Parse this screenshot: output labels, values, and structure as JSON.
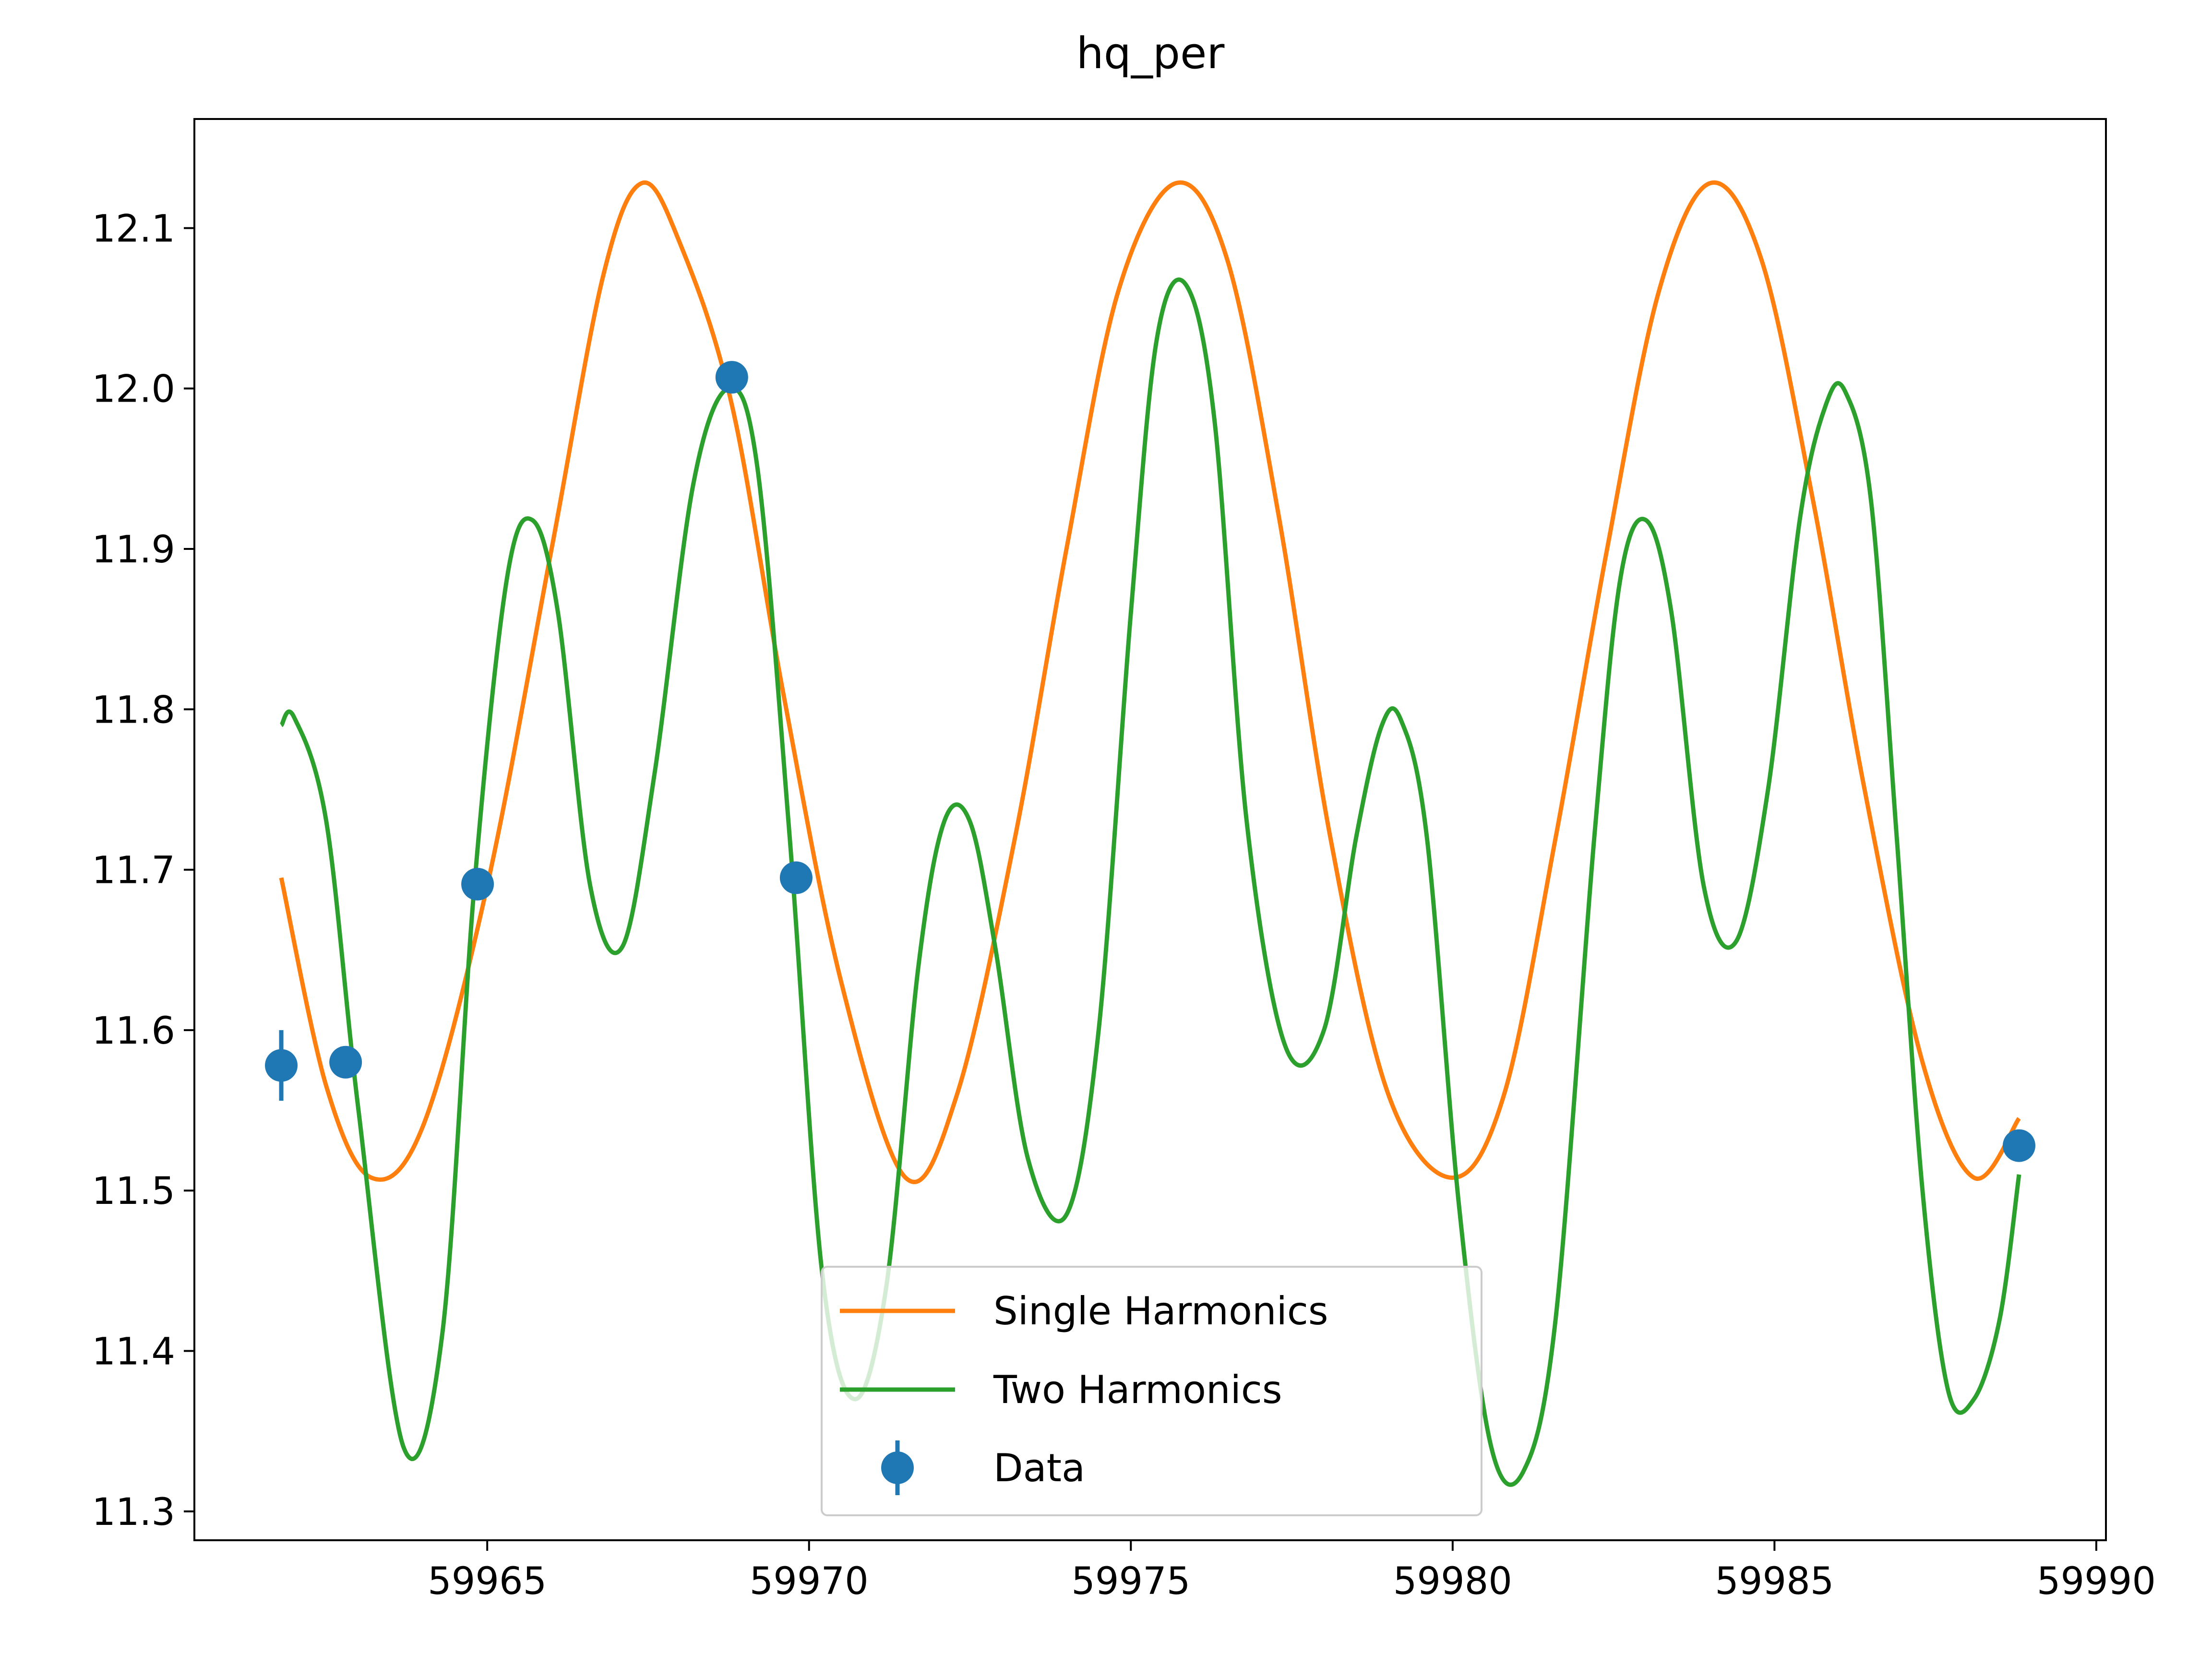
{
  "chart_data": {
    "type": "line",
    "title": "hq_per",
    "xlabel": "",
    "ylabel": "",
    "xlim": [
      59960.45,
      59990.15
    ],
    "ylim": [
      11.282,
      12.168
    ],
    "x_ticks": [
      59965,
      59970,
      59975,
      59980,
      59985,
      59990
    ],
    "y_ticks": [
      11.3,
      11.4,
      11.5,
      11.6,
      11.7,
      11.8,
      11.9,
      12.0,
      12.1
    ],
    "x_tick_labels": [
      "59965",
      "59970",
      "59975",
      "59980",
      "59985",
      "59990"
    ],
    "y_tick_labels": [
      "11.3",
      "11.4",
      "11.5",
      "11.6",
      "11.7",
      "11.8",
      "11.9",
      "12.0",
      "12.1"
    ],
    "grid": false,
    "legend_position": "lower center",
    "series": [
      {
        "name": "Single Harmonics",
        "kind": "line",
        "color": "#ff7f0e",
        "x": [
          59961.8,
          59962.5,
          59963.2,
          59964.0,
          59965.0,
          59966.0,
          59966.8,
          59967.4,
          59968.0,
          59968.8,
          59969.6,
          59970.5,
          59971.5,
          59972.3,
          59973.2,
          59974.0,
          59974.8,
          59975.7,
          59976.5,
          59977.3,
          59978.1,
          59979.0,
          59980.0,
          59980.8,
          59981.6,
          59982.4,
          59983.2,
          59984.0,
          59984.8,
          59985.6,
          59986.4,
          59987.3,
          59988.1,
          59988.8
        ],
        "y": [
          11.695,
          11.565,
          11.508,
          11.54,
          11.69,
          11.9,
          12.07,
          12.128,
          12.09,
          11.99,
          11.81,
          11.63,
          11.508,
          11.56,
          11.72,
          11.9,
          12.06,
          12.128,
          12.08,
          11.92,
          11.72,
          11.56,
          11.508,
          11.56,
          11.72,
          11.9,
          12.06,
          12.128,
          12.08,
          11.93,
          11.75,
          11.58,
          11.508,
          11.545
        ]
      },
      {
        "name": "Two Harmonics",
        "kind": "line",
        "color": "#2ca02c",
        "x": [
          59961.8,
          59962.0,
          59962.5,
          59963.0,
          59963.7,
          59964.3,
          59964.8,
          59965.3,
          59965.7,
          59966.1,
          59966.6,
          59967.1,
          59967.6,
          59968.2,
          59968.75,
          59969.2,
          59969.7,
          59970.2,
          59970.7,
          59971.2,
          59971.7,
          59972.1,
          59972.5,
          59972.9,
          59973.4,
          59974.0,
          59974.5,
          59975.0,
          59975.4,
          59975.85,
          59976.3,
          59976.8,
          59977.4,
          59978.0,
          59978.5,
          59978.9,
          59979.2,
          59979.6,
          59980.1,
          59980.6,
          59981.1,
          59981.6,
          59982.2,
          59982.6,
          59983.0,
          59983.4,
          59983.9,
          59984.4,
          59984.9,
          59985.4,
          59985.8,
          59986.1,
          59986.5,
          59986.9,
          59987.3,
          59987.7,
          59988.1,
          59988.5,
          59988.8
        ],
        "y": [
          11.79,
          11.795,
          11.73,
          11.55,
          11.34,
          11.41,
          11.69,
          11.88,
          11.918,
          11.86,
          11.69,
          11.652,
          11.76,
          11.94,
          12.0,
          11.95,
          11.72,
          11.45,
          11.37,
          11.44,
          11.64,
          11.73,
          11.73,
          11.65,
          11.52,
          11.485,
          11.6,
          11.86,
          12.03,
          12.065,
          11.98,
          11.73,
          11.59,
          11.6,
          11.72,
          11.79,
          11.793,
          11.72,
          11.49,
          11.34,
          11.325,
          11.42,
          11.72,
          11.88,
          11.918,
          11.86,
          11.69,
          11.655,
          11.75,
          11.92,
          11.99,
          11.998,
          11.93,
          11.72,
          11.5,
          11.375,
          11.37,
          11.42,
          11.51
        ]
      },
      {
        "name": "Data",
        "kind": "errorbar",
        "color": "#1f77b4",
        "x": [
          59961.8,
          59962.8,
          59964.85,
          59968.8,
          59969.8,
          59988.8
        ],
        "y": [
          11.578,
          11.58,
          11.691,
          12.007,
          11.695,
          11.528
        ],
        "yerr": [
          0.022,
          0.0,
          0.0,
          0.0,
          0.0,
          0.0
        ]
      }
    ]
  }
}
